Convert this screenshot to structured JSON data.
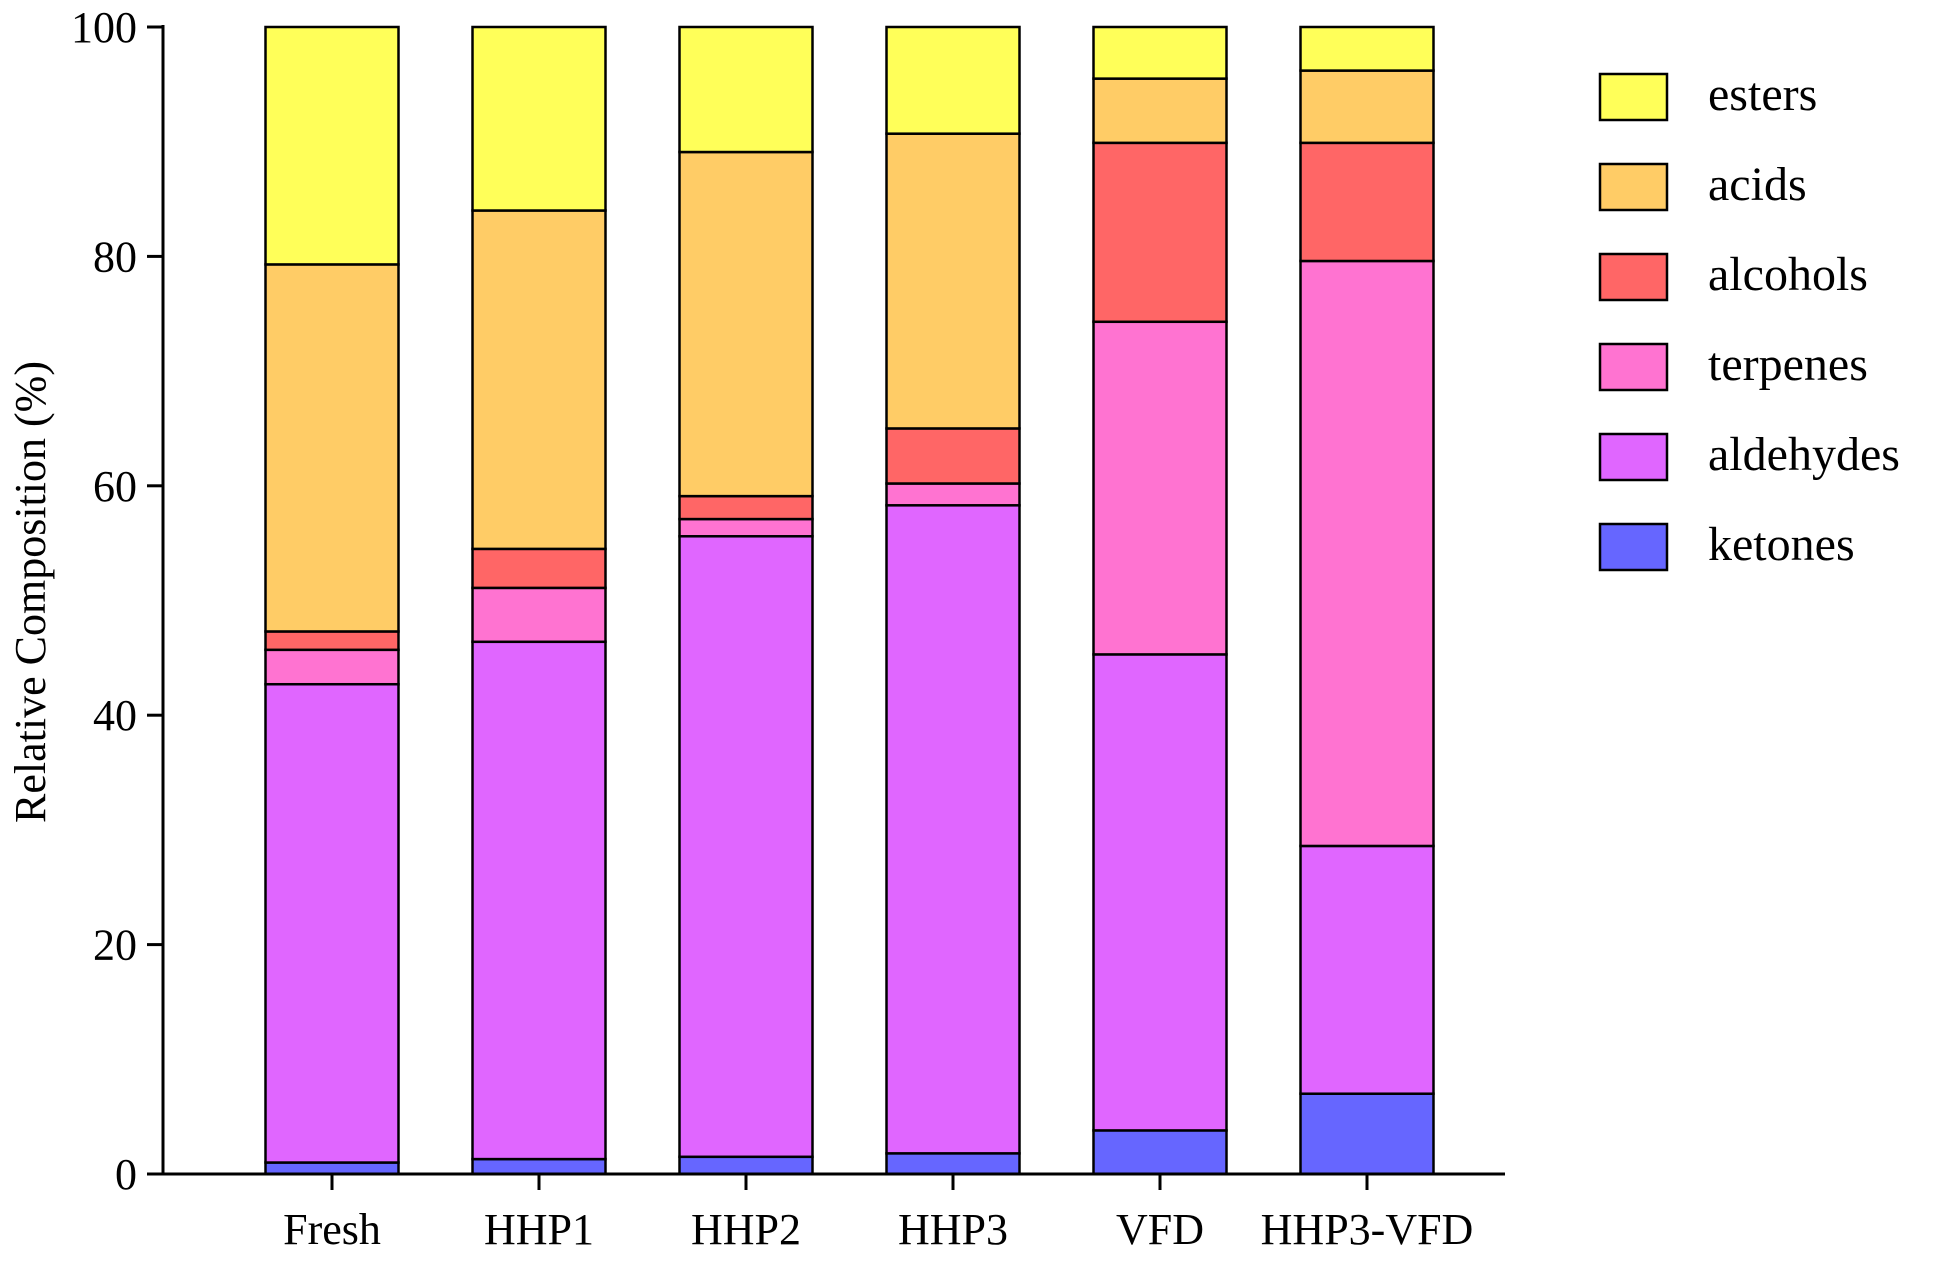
{
  "chart_data": {
    "type": "bar",
    "stacked": true,
    "title": "",
    "xlabel": "",
    "ylabel": "Relative Composition (%)",
    "ylim": [
      0,
      100
    ],
    "yticks": [
      "0",
      "20",
      "40",
      "60",
      "80",
      "100"
    ],
    "categories": [
      "Fresh",
      "HHP1",
      "HHP2",
      "HHP3",
      "VFD",
      "HHP3-VFD"
    ],
    "series": [
      {
        "name": "ketones",
        "color": "#6666ff",
        "values": [
          1.0,
          1.3,
          1.5,
          1.8,
          3.8,
          7.0
        ]
      },
      {
        "name": "aldehydes",
        "color": "#e066ff",
        "values": [
          41.7,
          45.1,
          54.1,
          56.5,
          41.5,
          21.6
        ]
      },
      {
        "name": "terpenes",
        "color": "#ff73d1",
        "values": [
          3.0,
          4.7,
          1.5,
          1.9,
          29.0,
          51.0
        ]
      },
      {
        "name": "alcohols",
        "color": "#ff6666",
        "values": [
          1.6,
          3.4,
          2.0,
          4.8,
          15.6,
          10.3
        ]
      },
      {
        "name": "acids",
        "color": "#ffcc66",
        "values": [
          32.0,
          29.5,
          30.0,
          25.7,
          5.6,
          6.3
        ]
      },
      {
        "name": "esters",
        "color": "#ffff59",
        "values": [
          20.7,
          16.0,
          10.9,
          9.3,
          4.5,
          3.8
        ]
      }
    ],
    "legend": {
      "position": "right",
      "order": [
        "esters",
        "acids",
        "alcohols",
        "terpenes",
        "aldehydes",
        "ketones"
      ]
    }
  }
}
